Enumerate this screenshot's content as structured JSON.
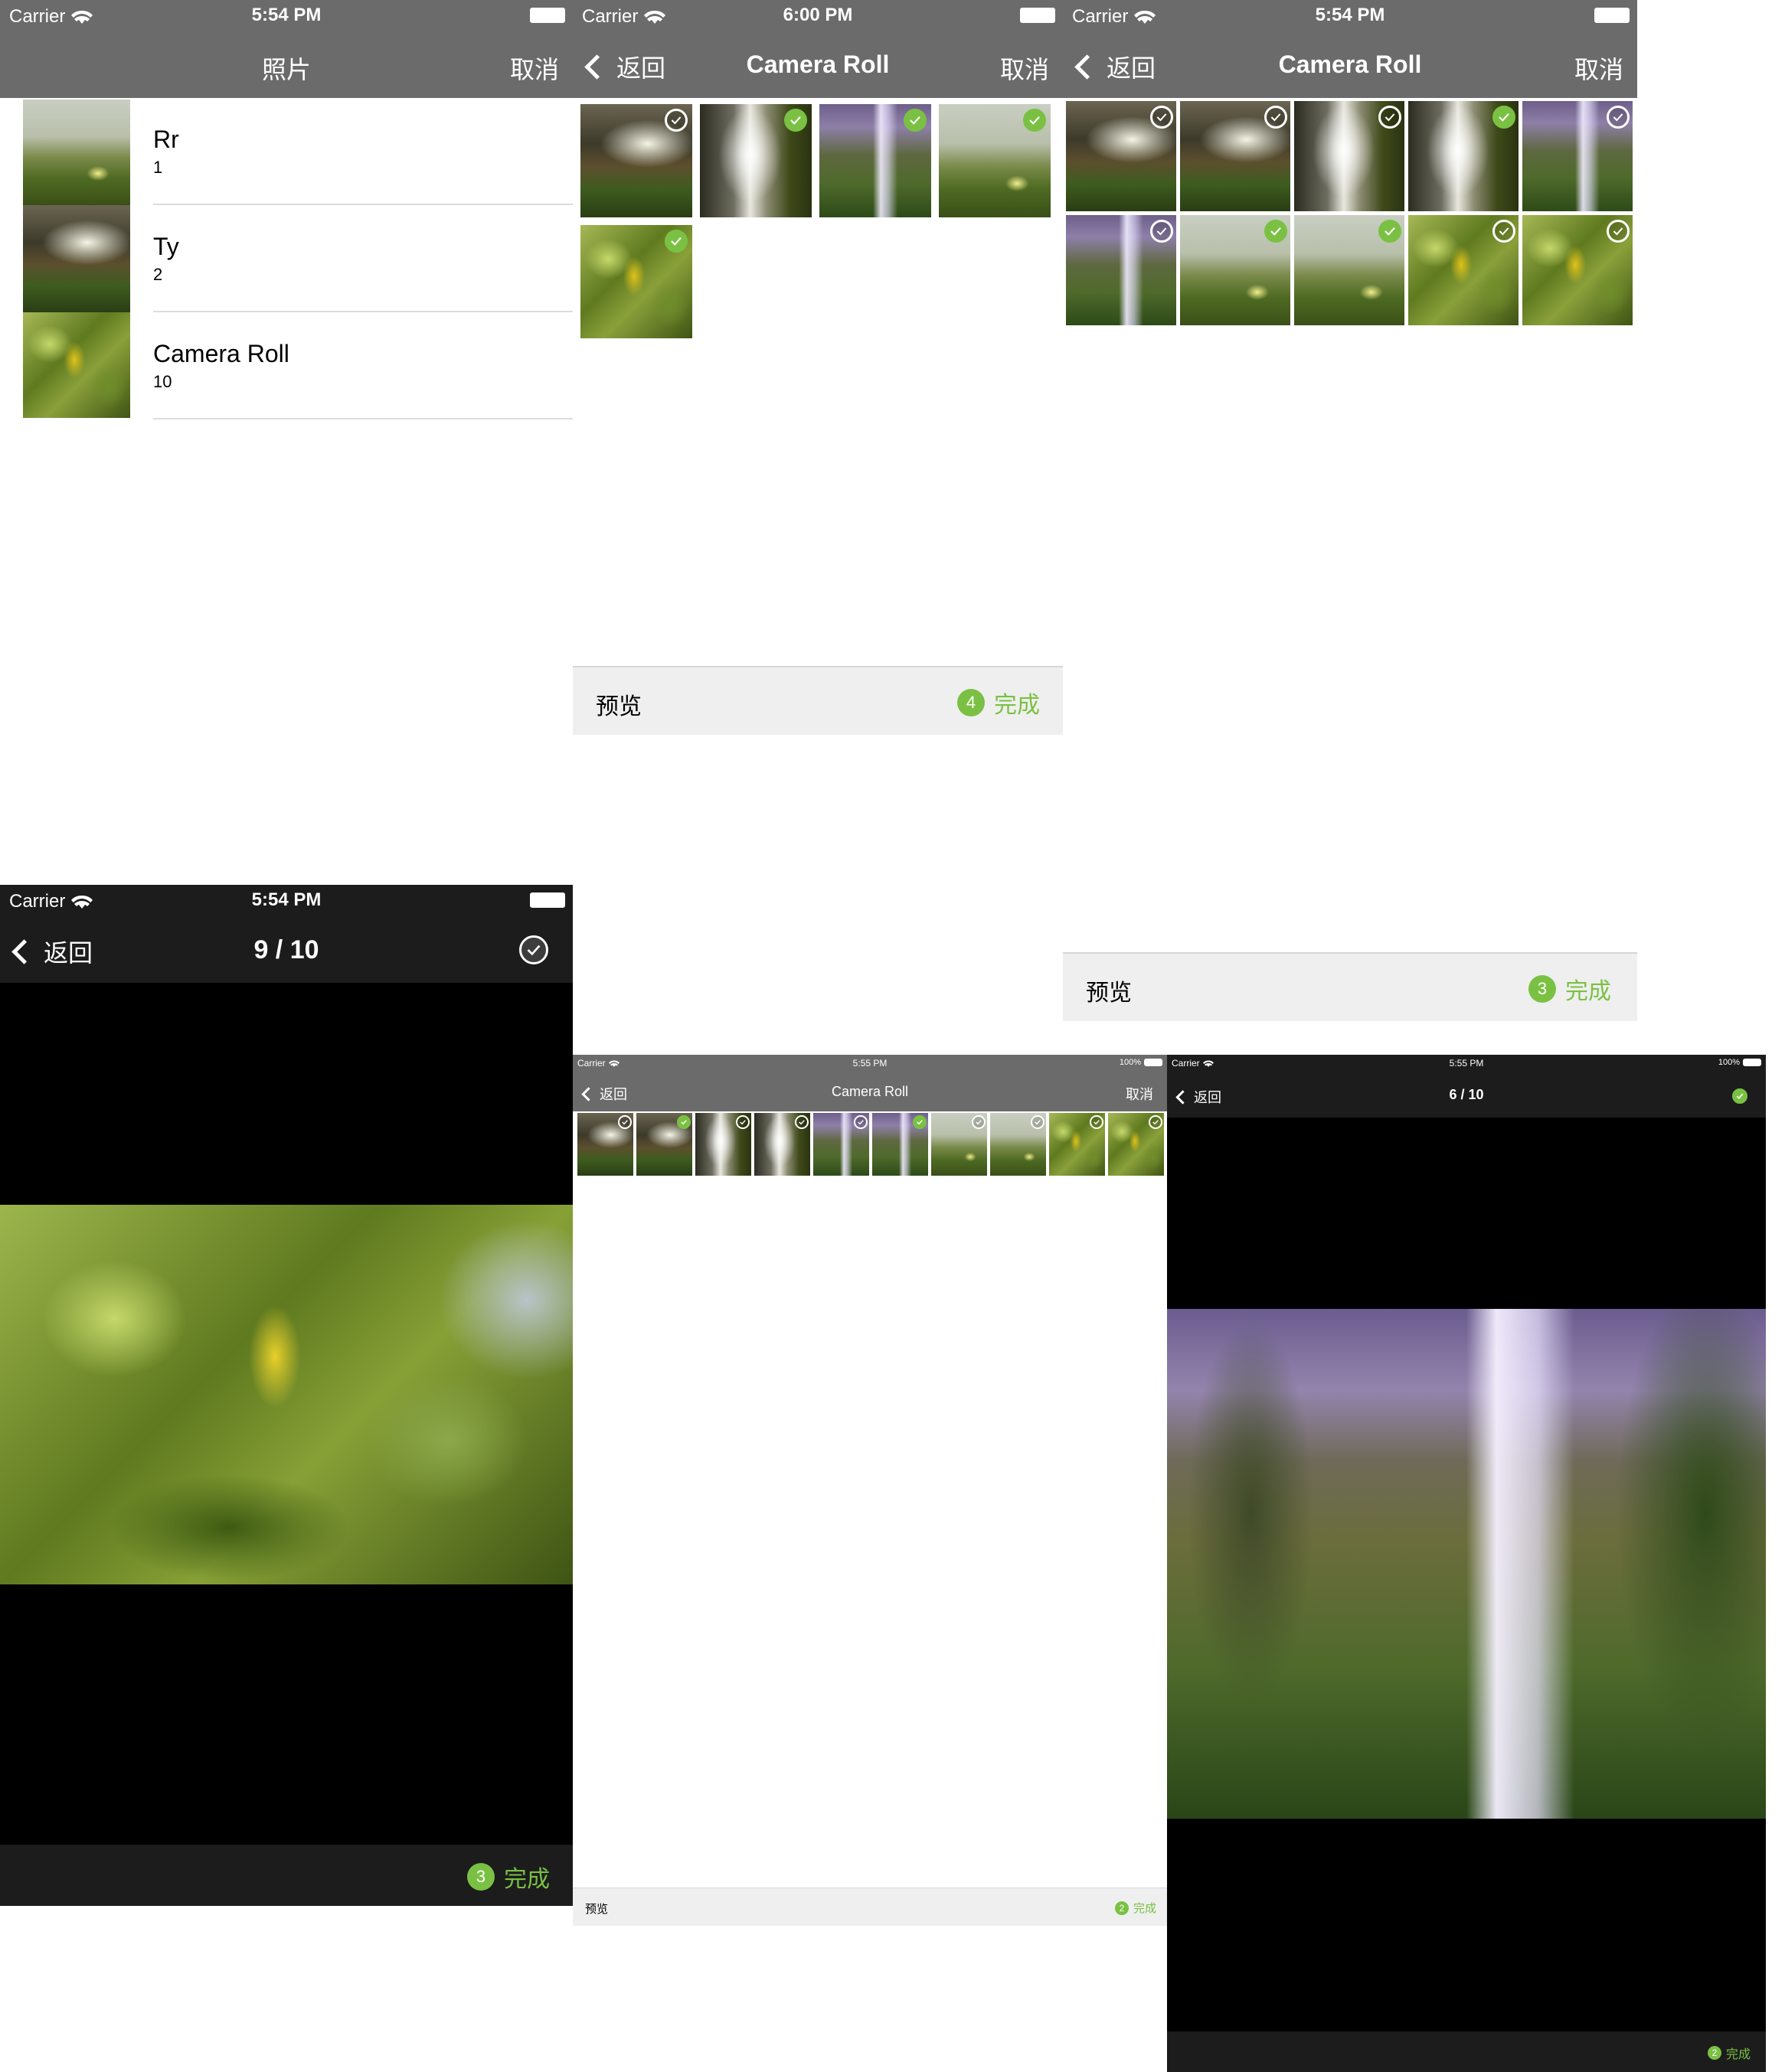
{
  "status": {
    "carrier": "Carrier",
    "battery_percent": "100%",
    "times": [
      "5:54 PM",
      "6:00 PM",
      "5:54 PM",
      "5:54 PM",
      "5:55 PM",
      "5:55 PM"
    ]
  },
  "albums_screen": {
    "title": "照片",
    "cancel": "取消",
    "albums": [
      {
        "name": "Rr",
        "count": "1",
        "thumb": "meadow"
      },
      {
        "name": "Ty",
        "count": "2",
        "thumb": "waterfall-a"
      },
      {
        "name": "Camera Roll",
        "count": "10",
        "thumb": "leaves"
      }
    ]
  },
  "grid_screen_1": {
    "back": "返回",
    "title": "Camera Roll",
    "cancel": "取消",
    "preview": "预览",
    "done": "完成",
    "selected_count": "4",
    "photos": [
      {
        "img": "waterfall-a",
        "checked": false
      },
      {
        "img": "waterfall-b",
        "checked": true
      },
      {
        "img": "skogafoss",
        "checked": true
      },
      {
        "img": "meadow",
        "checked": true
      },
      {
        "img": "leaves",
        "checked": true
      }
    ]
  },
  "grid_screen_2": {
    "back": "返回",
    "title": "Camera Roll",
    "cancel": "取消",
    "preview": "预览",
    "done": "完成",
    "selected_count": "3",
    "photos": [
      {
        "img": "waterfall-a",
        "checked": false
      },
      {
        "img": "waterfall-a",
        "checked": false
      },
      {
        "img": "waterfall-b",
        "checked": false
      },
      {
        "img": "waterfall-b",
        "checked": true
      },
      {
        "img": "skogafoss",
        "checked": false
      },
      {
        "img": "skogafoss",
        "checked": false
      },
      {
        "img": "meadow",
        "checked": true
      },
      {
        "img": "meadow",
        "checked": true
      },
      {
        "img": "leaves",
        "checked": false
      },
      {
        "img": "leaves",
        "checked": false
      }
    ]
  },
  "viewer_screen_1": {
    "back": "返回",
    "counter": "9 / 10",
    "checked": false,
    "done": "完成",
    "selected_count": "3"
  },
  "grid_screen_3": {
    "back": "返回",
    "title": "Camera Roll",
    "cancel": "取消",
    "preview": "预览",
    "done": "完成",
    "selected_count": "2",
    "photos": [
      {
        "img": "waterfall-a",
        "checked": false
      },
      {
        "img": "waterfall-a",
        "checked": true
      },
      {
        "img": "waterfall-b",
        "checked": false
      },
      {
        "img": "waterfall-b",
        "checked": false
      },
      {
        "img": "skogafoss",
        "checked": false
      },
      {
        "img": "skogafoss",
        "checked": true
      },
      {
        "img": "meadow",
        "checked": false
      },
      {
        "img": "meadow",
        "checked": false
      },
      {
        "img": "leaves",
        "checked": false
      },
      {
        "img": "leaves",
        "checked": false
      }
    ]
  },
  "viewer_screen_2": {
    "back": "返回",
    "counter": "6 / 10",
    "checked": true,
    "done": "完成",
    "selected_count": "2"
  },
  "colors": {
    "accent": "#7ac143",
    "nav_gray": "#6b6b6b",
    "nav_dark": "#1c1c1c",
    "toolbar": "#efefef"
  }
}
